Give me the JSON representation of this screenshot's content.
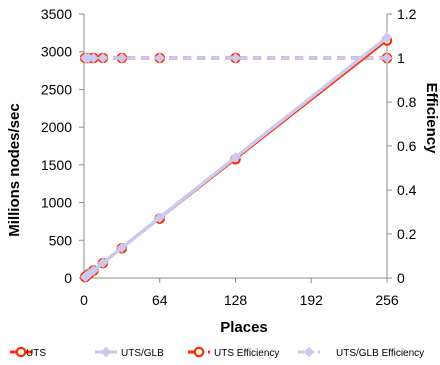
{
  "chart_data": {
    "type": "line",
    "title": "",
    "xlabel": "Places",
    "ylabel_left": "Millions nodes/sec",
    "ylabel_right": "Efficiency",
    "x_ticks": [
      0,
      64,
      128,
      192,
      256
    ],
    "y_left_ticks": [
      0,
      500,
      1000,
      1500,
      2000,
      2500,
      3000,
      3500
    ],
    "y_right_ticks": [
      "0",
      "0.2",
      "0.4",
      "0.6",
      "0.8",
      "1",
      "1.2"
    ],
    "xlim": [
      0,
      256
    ],
    "ylim_left": [
      0,
      3500
    ],
    "ylim_right": [
      0,
      1.2
    ],
    "grid": false,
    "legend_position": "bottom",
    "series": [
      {
        "name": "UTS",
        "axis": "left",
        "color": "#ff2a00",
        "style": "solid",
        "marker": "circle",
        "x": [
          1,
          2,
          4,
          8,
          16,
          32,
          64,
          128,
          256
        ],
        "y": [
          12.3,
          24.6,
          49.2,
          98.4,
          196.8,
          393.6,
          787,
          1574,
          3148
        ]
      },
      {
        "name": "UTS/GLB",
        "axis": "left",
        "color": "#c9c9f2",
        "style": "solid",
        "marker": "diamond",
        "x": [
          1,
          2,
          4,
          8,
          16,
          32,
          64,
          128,
          256
        ],
        "y": [
          12.5,
          25,
          50,
          100,
          200,
          400,
          800,
          1600,
          3190
        ]
      },
      {
        "name": "UTS Efficiency",
        "axis": "right",
        "color": "#ff2a00",
        "style": "dashed",
        "marker": "circle",
        "x": [
          1,
          2,
          4,
          8,
          16,
          32,
          64,
          128,
          256
        ],
        "y": [
          1.0,
          1.0,
          1.0,
          1.0,
          1.0,
          1.0,
          1.0,
          1.0,
          1.0
        ]
      },
      {
        "name": "UTS/GLB Efficiency",
        "axis": "right",
        "color": "#c9c9f2",
        "style": "dashed",
        "marker": "diamond",
        "x": [
          1,
          2,
          4,
          8,
          16,
          32,
          64,
          128,
          256
        ],
        "y": [
          1.0,
          1.0,
          1.0,
          1.0,
          1.0,
          1.0,
          1.0,
          1.0,
          1.0
        ]
      }
    ]
  }
}
